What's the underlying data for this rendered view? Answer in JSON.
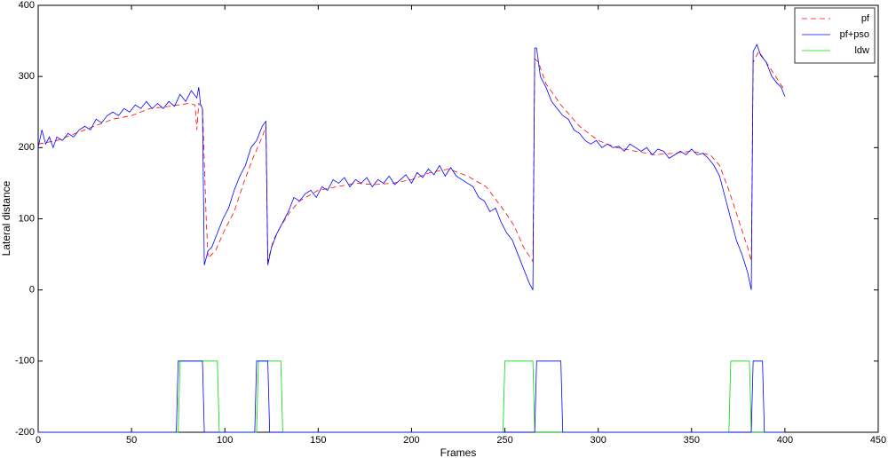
{
  "chart_data": {
    "type": "line",
    "xlabel": "Frames",
    "ylabel": "Lateral distance",
    "xlim": [
      0,
      450
    ],
    "xticks": [
      0,
      50,
      100,
      150,
      200,
      250,
      300,
      350,
      400,
      450
    ],
    "ylim": [
      -200,
      400
    ],
    "yticks": [
      -200,
      -100,
      0,
      100,
      200,
      300,
      400
    ],
    "legend": "northeast",
    "series": [
      {
        "name": "pf",
        "color": "#ff0000",
        "style": "dashed",
        "x": [
          0,
          10,
          20,
          30,
          40,
          50,
          60,
          70,
          80,
          84,
          85,
          86,
          88,
          90,
          91,
          95,
          100,
          105,
          110,
          115,
          120,
          122,
          123,
          126,
          130,
          135,
          140,
          150,
          160,
          170,
          180,
          190,
          200,
          210,
          220,
          230,
          240,
          250,
          255,
          260,
          265,
          266,
          268,
          272,
          280,
          290,
          300,
          310,
          320,
          330,
          340,
          350,
          360,
          365,
          370,
          375,
          380,
          382,
          383,
          386,
          390,
          395,
          400
        ],
        "values": [
          205,
          210,
          220,
          230,
          240,
          245,
          255,
          258,
          262,
          260,
          225,
          262,
          258,
          100,
          45,
          55,
          85,
          110,
          150,
          185,
          215,
          230,
          40,
          70,
          90,
          110,
          125,
          140,
          145,
          150,
          148,
          150,
          155,
          165,
          170,
          160,
          145,
          110,
          90,
          60,
          40,
          325,
          320,
          290,
          260,
          230,
          210,
          200,
          195,
          190,
          192,
          195,
          190,
          175,
          140,
          100,
          60,
          40,
          320,
          335,
          320,
          300,
          280
        ]
      },
      {
        "name": "pf+pso",
        "color": "#0000ff",
        "style": "solid",
        "x": [
          0,
          2,
          4,
          6,
          8,
          10,
          13,
          16,
          19,
          22,
          25,
          28,
          31,
          34,
          37,
          40,
          43,
          46,
          49,
          52,
          55,
          58,
          61,
          64,
          67,
          70,
          73,
          76,
          79,
          82,
          85,
          86,
          87,
          88,
          89,
          91,
          93,
          96,
          99,
          102,
          105,
          108,
          111,
          114,
          117,
          120,
          122,
          123,
          125,
          128,
          131,
          134,
          137,
          140,
          143,
          146,
          149,
          152,
          155,
          158,
          161,
          164,
          167,
          170,
          173,
          176,
          179,
          182,
          185,
          188,
          191,
          194,
          197,
          200,
          203,
          206,
          209,
          212,
          215,
          218,
          221,
          224,
          227,
          230,
          233,
          236,
          239,
          242,
          245,
          248,
          251,
          254,
          257,
          260,
          263,
          265,
          266,
          267,
          269,
          272,
          275,
          278,
          281,
          284,
          287,
          290,
          293,
          296,
          299,
          302,
          305,
          308,
          311,
          314,
          317,
          320,
          323,
          326,
          329,
          332,
          335,
          338,
          341,
          344,
          347,
          350,
          353,
          356,
          359,
          362,
          365,
          368,
          371,
          374,
          377,
          380,
          382,
          383,
          385,
          387,
          390,
          393,
          396,
          398,
          400
        ],
        "values": [
          200,
          225,
          205,
          215,
          200,
          215,
          210,
          220,
          215,
          225,
          230,
          225,
          240,
          235,
          245,
          250,
          245,
          255,
          250,
          260,
          255,
          265,
          255,
          262,
          255,
          265,
          258,
          275,
          265,
          280,
          270,
          285,
          260,
          255,
          35,
          55,
          60,
          80,
          100,
          115,
          140,
          160,
          175,
          200,
          210,
          230,
          237,
          35,
          60,
          80,
          95,
          110,
          130,
          125,
          135,
          140,
          130,
          145,
          140,
          155,
          150,
          158,
          145,
          155,
          150,
          158,
          145,
          155,
          150,
          160,
          148,
          155,
          162,
          150,
          165,
          158,
          170,
          162,
          175,
          160,
          172,
          160,
          155,
          150,
          145,
          130,
          125,
          110,
          115,
          95,
          80,
          70,
          50,
          30,
          10,
          0,
          340,
          340,
          300,
          285,
          265,
          255,
          245,
          240,
          225,
          220,
          210,
          205,
          210,
          200,
          205,
          200,
          202,
          195,
          205,
          200,
          195,
          200,
          190,
          198,
          195,
          185,
          190,
          195,
          190,
          198,
          190,
          192,
          185,
          175,
          160,
          130,
          100,
          70,
          50,
          25,
          0,
          335,
          345,
          330,
          320,
          300,
          290,
          285,
          272
        ]
      },
      {
        "name": "ldw",
        "color": "#00dd00",
        "style": "solid",
        "x": [
          0,
          75,
          76,
          96,
          97,
          117,
          118,
          130,
          131,
          249,
          250,
          265,
          266,
          370,
          371,
          381,
          382,
          400
        ],
        "values": [
          -200,
          -200,
          -100,
          -100,
          -200,
          -200,
          -100,
          -100,
          -200,
          -200,
          -100,
          -100,
          -200,
          -200,
          -100,
          -100,
          -200,
          -200
        ]
      },
      {
        "color": "#0000ff",
        "style": "solid",
        "x": [
          0,
          74,
          75,
          88,
          89,
          116,
          117,
          123,
          124,
          266,
          267,
          280,
          281,
          382,
          383,
          388,
          389,
          400
        ],
        "values": [
          -200,
          -200,
          -100,
          -100,
          -200,
          -200,
          -100,
          -100,
          -200,
          -200,
          -100,
          -100,
          -200,
          -200,
          -100,
          -100,
          -200,
          -200
        ]
      }
    ]
  }
}
